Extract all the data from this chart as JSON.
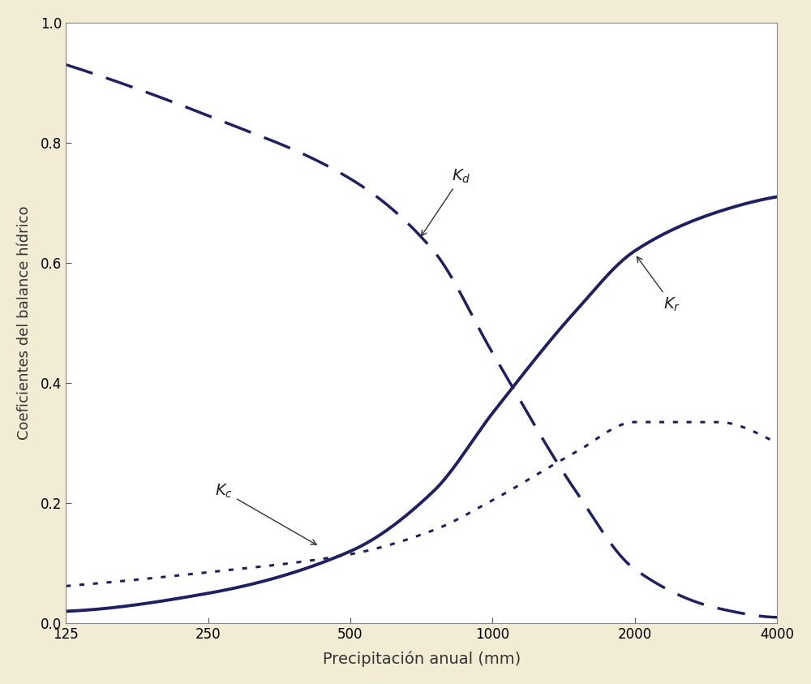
{
  "xlabel": "Precipitación anual (mm)",
  "ylabel": "Coeficientes del balance hídrico",
  "background_color": "#f2ecd4",
  "plot_background": "#ffffff",
  "line_color": "#1e2060",
  "x_ticks": [
    125,
    250,
    500,
    1000,
    2000,
    4000
  ],
  "ylim": [
    0.0,
    1.0
  ],
  "xlim": [
    125,
    4000
  ],
  "xlabel_fontsize": 14,
  "ylabel_fontsize": 13,
  "tick_fontsize": 12,
  "annotation_fontsize": 14
}
